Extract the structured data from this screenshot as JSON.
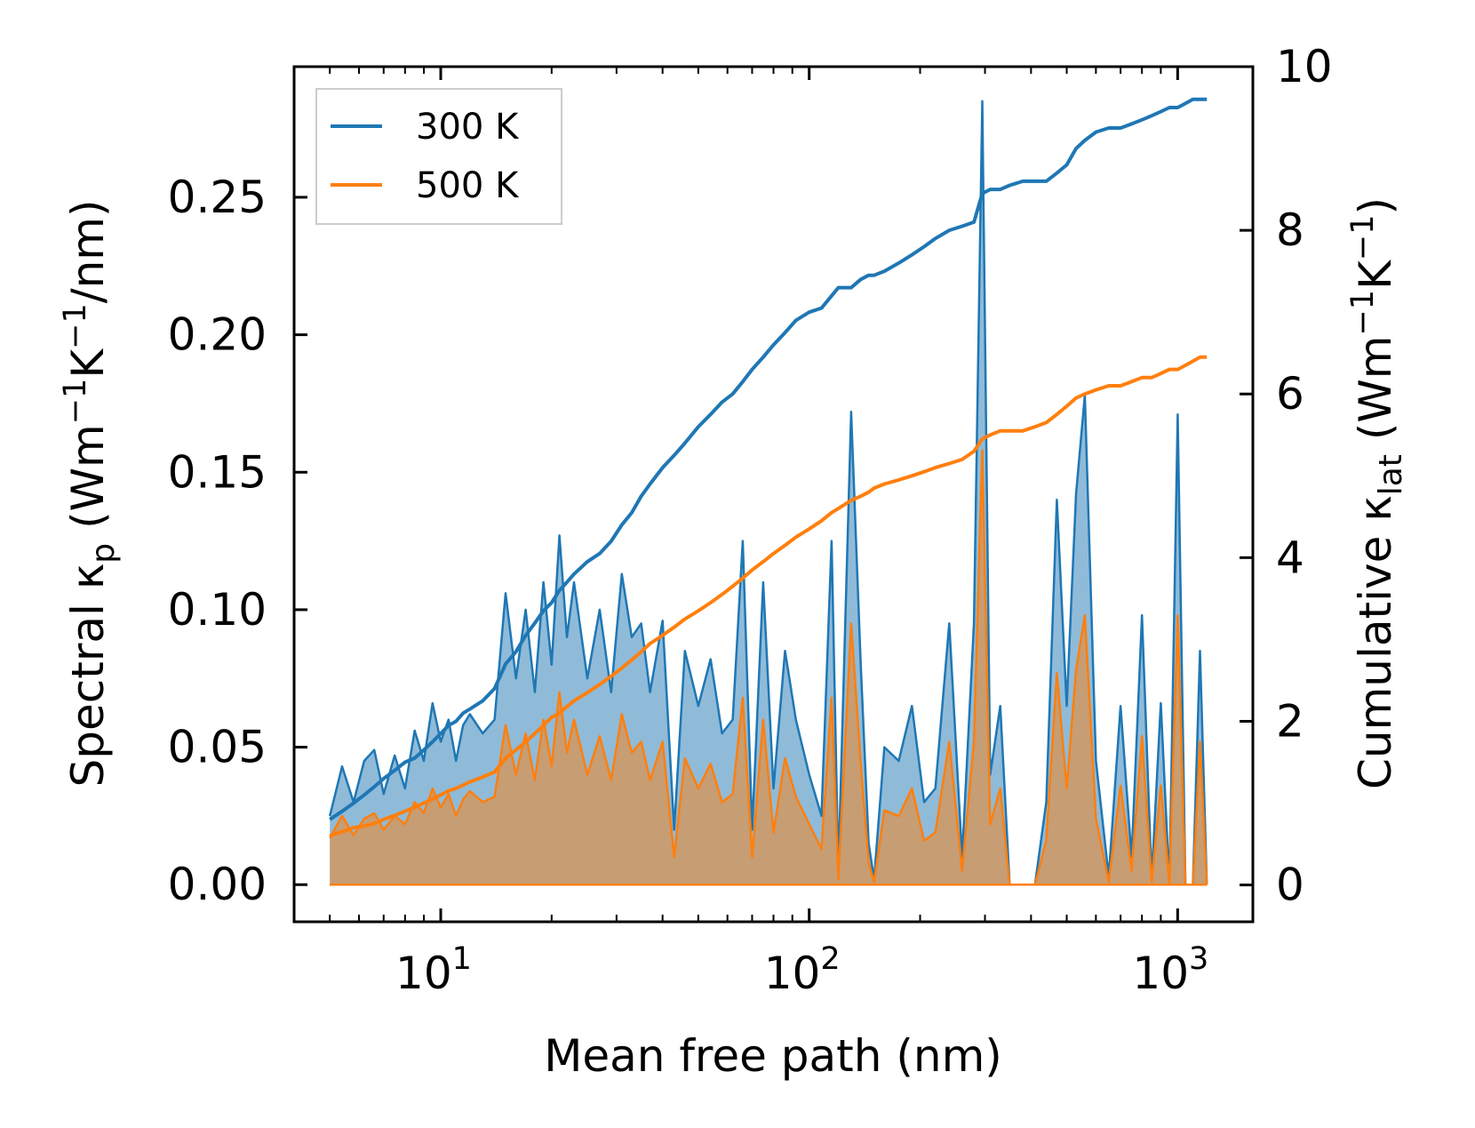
{
  "chart_data": {
    "type": "line",
    "xscale": "log",
    "xlabel": "Mean free path (nm)",
    "ylabel_left": "Spectral κp (Wm−1K−1/nm)",
    "ylabel_right": "Cumulative κlat (Wm−1K−1)",
    "xlim": [
      4.0,
      1600
    ],
    "ylim_left": [
      -0.0135,
      0.2975
    ],
    "ylim_right": [
      -0.45,
      10.0
    ],
    "x_ticks": [
      {
        "value": 10,
        "base": "10",
        "exp": "1"
      },
      {
        "value": 100,
        "base": "10",
        "exp": "2"
      },
      {
        "value": 1000,
        "base": "10",
        "exp": "3"
      }
    ],
    "y_ticks_left": [
      {
        "value": 0.0,
        "label": "0.00"
      },
      {
        "value": 0.05,
        "label": "0.05"
      },
      {
        "value": 0.1,
        "label": "0.10"
      },
      {
        "value": 0.15,
        "label": "0.15"
      },
      {
        "value": 0.2,
        "label": "0.20"
      },
      {
        "value": 0.25,
        "label": "0.25"
      }
    ],
    "y_ticks_right": [
      {
        "value": 0,
        "label": "0"
      },
      {
        "value": 2,
        "label": "2"
      },
      {
        "value": 4,
        "label": "4"
      },
      {
        "value": 6,
        "label": "6"
      },
      {
        "value": 8,
        "label": "8"
      },
      {
        "value": 10,
        "label": "10"
      }
    ],
    "legend": {
      "position": "top-left",
      "entries": [
        "300 K",
        "500 K"
      ]
    },
    "series": [
      {
        "name": "300 K",
        "axis": "left",
        "kind": "spectral",
        "color": "#1f77b4",
        "fill": "rgba(31,119,180,0.5)",
        "x": [
          5,
          5.4,
          5.8,
          6.2,
          6.6,
          7.0,
          7.5,
          8.0,
          8.5,
          9.0,
          9.5,
          10.0,
          10.5,
          11.0,
          11.5,
          12.0,
          13.0,
          14.0,
          15.0,
          16.0,
          17.0,
          18.0,
          19.0,
          20.0,
          21.0,
          22.0,
          23.0,
          25.0,
          27.0,
          29.0,
          31.0,
          33.0,
          35.0,
          37.0,
          40.0,
          43.0,
          46.0,
          50.0,
          54.0,
          58.0,
          62.0,
          66.0,
          70.0,
          75.0,
          80.0,
          86.0,
          92.0,
          100.0,
          108.0,
          115.0,
          120.0,
          130.0,
          138.0,
          145.0,
          150.0,
          160.0,
          175.0,
          190.0,
          205.0,
          220.0,
          240.0,
          260.0,
          280.0,
          295.0,
          310.0,
          330.0,
          350.0,
          380.0,
          410.0,
          440.0,
          470.0,
          500.0,
          530.0,
          560.0,
          600.0,
          650.0,
          700.0,
          750.0,
          800.0,
          850.0,
          900.0,
          950.0,
          1000.0,
          1050.0,
          1100.0,
          1150.0,
          1200.0
        ],
        "values": [
          0.025,
          0.043,
          0.03,
          0.045,
          0.049,
          0.033,
          0.047,
          0.035,
          0.056,
          0.045,
          0.066,
          0.052,
          0.06,
          0.045,
          0.058,
          0.062,
          0.055,
          0.06,
          0.106,
          0.075,
          0.1,
          0.07,
          0.11,
          0.08,
          0.127,
          0.09,
          0.11,
          0.075,
          0.1,
          0.07,
          0.113,
          0.09,
          0.095,
          0.07,
          0.096,
          0.02,
          0.085,
          0.065,
          0.082,
          0.055,
          0.06,
          0.125,
          0.02,
          0.11,
          0.035,
          0.085,
          0.06,
          0.04,
          0.025,
          0.125,
          0.005,
          0.172,
          0.08,
          0.015,
          0.002,
          0.05,
          0.045,
          0.065,
          0.03,
          0.035,
          0.095,
          0.01,
          0.095,
          0.285,
          0.04,
          0.065,
          0.0,
          0.0,
          0.0,
          0.03,
          0.14,
          0.065,
          0.142,
          0.178,
          0.045,
          0.003,
          0.065,
          0.01,
          0.098,
          0.002,
          0.066,
          0.0,
          0.171,
          0.0,
          0.0,
          0.085,
          0.0
        ],
        "cumulative": [
          0.8,
          0.9,
          1.0,
          1.1,
          1.2,
          1.3,
          1.4,
          1.5,
          1.55,
          1.65,
          1.75,
          1.85,
          1.95,
          2.0,
          2.1,
          2.15,
          2.25,
          2.4,
          2.7,
          2.85,
          3.05,
          3.2,
          3.35,
          3.45,
          3.6,
          3.7,
          3.8,
          3.95,
          4.05,
          4.2,
          4.4,
          4.55,
          4.75,
          4.9,
          5.1,
          5.25,
          5.4,
          5.6,
          5.75,
          5.9,
          6.0,
          6.15,
          6.3,
          6.45,
          6.6,
          6.75,
          6.9,
          7.0,
          7.05,
          7.2,
          7.3,
          7.3,
          7.4,
          7.45,
          7.45,
          7.5,
          7.6,
          7.7,
          7.8,
          7.9,
          8.0,
          8.05,
          8.1,
          8.45,
          8.5,
          8.5,
          8.55,
          8.6,
          8.6,
          8.6,
          8.7,
          8.8,
          9.0,
          9.1,
          9.2,
          9.25,
          9.25,
          9.3,
          9.35,
          9.4,
          9.45,
          9.5,
          9.5,
          9.55,
          9.6,
          9.6,
          9.6
        ]
      },
      {
        "name": "500 K",
        "axis": "left",
        "kind": "spectral",
        "color": "#ff7f0e",
        "fill": "rgba(255,127,14,0.5)",
        "x": [
          5,
          5.4,
          5.8,
          6.2,
          6.6,
          7.0,
          7.5,
          8.0,
          8.5,
          9.0,
          9.5,
          10.0,
          10.5,
          11.0,
          11.5,
          12.0,
          13.0,
          14.0,
          15.0,
          16.0,
          17.0,
          18.0,
          19.0,
          20.0,
          21.0,
          22.0,
          23.0,
          25.0,
          27.0,
          29.0,
          31.0,
          33.0,
          35.0,
          37.0,
          40.0,
          43.0,
          46.0,
          50.0,
          54.0,
          58.0,
          62.0,
          66.0,
          70.0,
          75.0,
          80.0,
          86.0,
          92.0,
          100.0,
          108.0,
          115.0,
          120.0,
          130.0,
          138.0,
          145.0,
          150.0,
          160.0,
          175.0,
          190.0,
          205.0,
          220.0,
          240.0,
          260.0,
          280.0,
          295.0,
          310.0,
          330.0,
          350.0,
          380.0,
          410.0,
          440.0,
          470.0,
          500.0,
          530.0,
          560.0,
          600.0,
          650.0,
          700.0,
          750.0,
          800.0,
          850.0,
          900.0,
          950.0,
          1000.0,
          1050.0,
          1100.0,
          1150.0,
          1200.0
        ],
        "values": [
          0.017,
          0.025,
          0.018,
          0.024,
          0.026,
          0.02,
          0.025,
          0.022,
          0.03,
          0.026,
          0.035,
          0.028,
          0.033,
          0.025,
          0.031,
          0.034,
          0.03,
          0.032,
          0.058,
          0.04,
          0.055,
          0.038,
          0.06,
          0.043,
          0.07,
          0.048,
          0.06,
          0.04,
          0.054,
          0.038,
          0.062,
          0.048,
          0.052,
          0.038,
          0.052,
          0.01,
          0.046,
          0.035,
          0.044,
          0.03,
          0.033,
          0.068,
          0.01,
          0.06,
          0.019,
          0.046,
          0.032,
          0.022,
          0.013,
          0.068,
          0.002,
          0.095,
          0.044,
          0.008,
          0.001,
          0.027,
          0.025,
          0.035,
          0.016,
          0.019,
          0.052,
          0.005,
          0.052,
          0.158,
          0.022,
          0.035,
          0.0,
          0.0,
          0.0,
          0.016,
          0.077,
          0.035,
          0.078,
          0.098,
          0.024,
          0.001,
          0.036,
          0.005,
          0.054,
          0.001,
          0.036,
          0.0,
          0.098,
          0.0,
          0.0,
          0.052,
          0.0
        ],
        "cumulative": [
          0.6,
          0.65,
          0.7,
          0.72,
          0.75,
          0.8,
          0.85,
          0.9,
          0.95,
          1.0,
          1.05,
          1.1,
          1.15,
          1.18,
          1.22,
          1.26,
          1.32,
          1.38,
          1.55,
          1.65,
          1.75,
          1.85,
          1.95,
          2.05,
          2.1,
          2.18,
          2.25,
          2.35,
          2.45,
          2.55,
          2.65,
          2.75,
          2.85,
          2.95,
          3.05,
          3.15,
          3.25,
          3.35,
          3.45,
          3.55,
          3.65,
          3.75,
          3.85,
          3.95,
          4.05,
          4.15,
          4.25,
          4.35,
          4.45,
          4.55,
          4.6,
          4.7,
          4.75,
          4.8,
          4.85,
          4.9,
          4.95,
          5.0,
          5.05,
          5.1,
          5.15,
          5.2,
          5.3,
          5.45,
          5.5,
          5.55,
          5.55,
          5.55,
          5.6,
          5.65,
          5.75,
          5.85,
          5.95,
          6.0,
          6.05,
          6.1,
          6.1,
          6.15,
          6.2,
          6.2,
          6.25,
          6.3,
          6.3,
          6.35,
          6.4,
          6.45,
          6.45
        ]
      }
    ]
  }
}
